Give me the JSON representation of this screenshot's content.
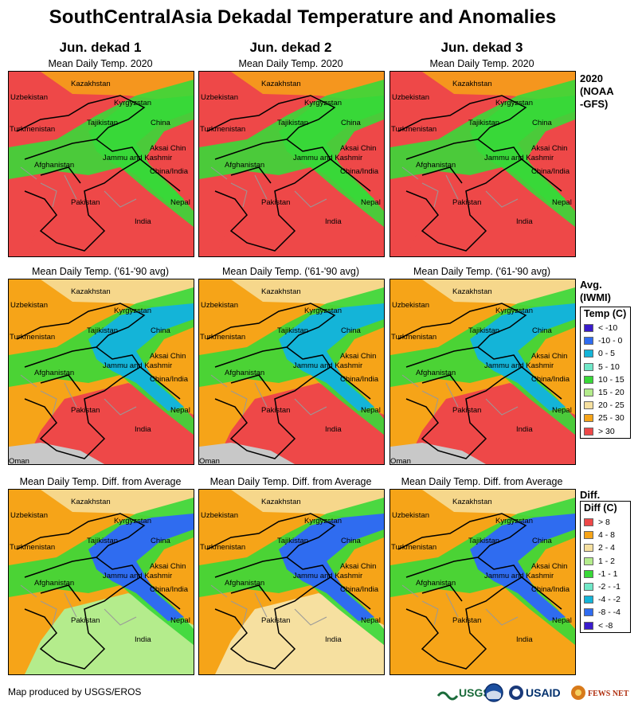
{
  "title": "SouthCentralAsia Dekadal Temperature and Anomalies",
  "columns": [
    "Jun. dekad 1",
    "Jun. dekad 2",
    "Jun. dekad 3"
  ],
  "rows": [
    {
      "panel_title": "Mean Daily Temp. 2020",
      "label_lines": [
        "2020",
        "(NOAA",
        "-GFS)"
      ]
    },
    {
      "panel_title": "Mean Daily Temp. ('61-'90 avg)",
      "label_lines": [
        "Avg.",
        "(IWMI)"
      ]
    },
    {
      "panel_title": "Mean Daily Temp. Diff. from Average",
      "label_lines": [
        "Diff."
      ]
    }
  ],
  "map_labels": {
    "kazakhstan": "Kazakhstan",
    "uzbekistan": "Uzbekistan",
    "kyrgyzstan": "Kyrgyzstan",
    "tajikistan": "Tajikistan",
    "china": "China",
    "turkmenistan": "Turkmenistan",
    "aksai_chin": "Aksai Chin",
    "jammu_kashmir": "Jammu and Kashmir",
    "china_india": "China/India",
    "afghanistan": "Afghanistan",
    "pakistan": "Pakistan",
    "nepal": "Nepal",
    "india": "India",
    "oman": "Oman"
  },
  "temp_legend": {
    "title": "Temp (C)",
    "items": [
      {
        "label": "< -10",
        "color": "#3a1ccc"
      },
      {
        "label": "-10 - 0",
        "color": "#2f6cf0"
      },
      {
        "label": "0 - 5",
        "color": "#14b4d8"
      },
      {
        "label": "5 - 10",
        "color": "#70e8c8"
      },
      {
        "label": "10 - 15",
        "color": "#38d838"
      },
      {
        "label": "15 - 20",
        "color": "#b4ec8c"
      },
      {
        "label": "20 - 25",
        "color": "#f6e0a0"
      },
      {
        "label": "25 - 30",
        "color": "#f6a418"
      },
      {
        "label": "> 30",
        "color": "#ee4848"
      }
    ]
  },
  "diff_legend": {
    "title": "Diff (C)",
    "items": [
      {
        "label": "> 8",
        "color": "#ee4848"
      },
      {
        "label": "4 - 8",
        "color": "#f6a418"
      },
      {
        "label": "2 - 4",
        "color": "#f6e0a0"
      },
      {
        "label": "1 - 2",
        "color": "#b4ec8c"
      },
      {
        "label": "-1 - 1",
        "color": "#38d838"
      },
      {
        "label": "-2 - -1",
        "color": "#70e8c8"
      },
      {
        "label": "-4 - -2",
        "color": "#14b4d8"
      },
      {
        "label": "-8 - -4",
        "color": "#2f6cf0"
      },
      {
        "label": "< -8",
        "color": "#3a1ccc"
      }
    ]
  },
  "credit": "Map produced by USGS/EROS",
  "logos": {
    "usgs": "USGS",
    "usaid": "USAID",
    "fewsnet": "FEWS NET"
  },
  "colors": {
    "red": "#ee4848",
    "orange": "#f6a418",
    "tan": "#f6e0a0",
    "lightgreen": "#b4ec8c",
    "green": "#38d838",
    "aqua": "#70e8c8",
    "cyan": "#14b4d8",
    "blue": "#2f6cf0",
    "purple": "#3a1ccc",
    "ocean": "#c8c8c8"
  },
  "fills": [
    [
      "red",
      "red",
      "red"
    ],
    [
      "orange",
      "orange",
      "orange"
    ],
    [
      "orange",
      "orange",
      "orange"
    ]
  ],
  "bands": [
    [
      "green",
      "green",
      "green"
    ],
    [
      "cyan",
      "cyan",
      "cyan"
    ],
    [
      "blue",
      "blue",
      "blue"
    ]
  ],
  "south_fills": [
    [
      "red",
      "red",
      "red"
    ],
    [
      "red",
      "red",
      "red"
    ],
    [
      "lightgreen",
      "tan",
      "orange"
    ]
  ]
}
